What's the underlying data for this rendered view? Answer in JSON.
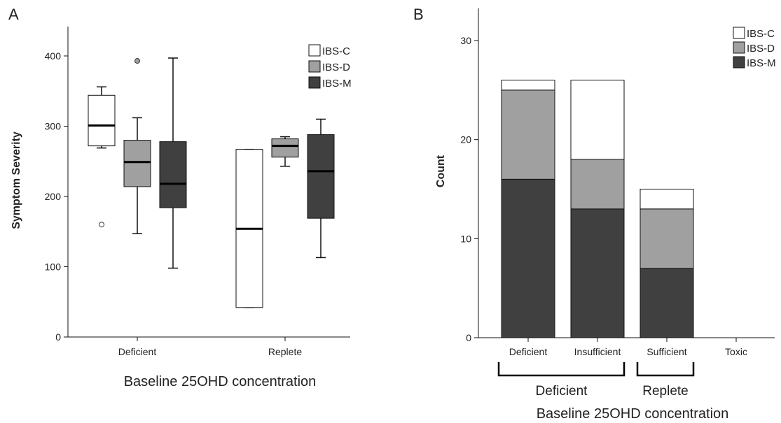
{
  "chart_data": [
    {
      "panel_label": "A",
      "type": "box",
      "ylabel": "Symptom Severity",
      "xlabel": "Baseline 25OHD concentration",
      "ylim": [
        0,
        440
      ],
      "yticks": [
        0,
        100,
        200,
        300,
        400
      ],
      "categories": [
        "Deficient",
        "Replete"
      ],
      "legend": {
        "position": "top-right",
        "entries": [
          "IBS-C",
          "IBS-D",
          "IBS-M"
        ]
      },
      "series": [
        {
          "name": "IBS-C",
          "color": "#ffffff",
          "boxes": [
            {
              "category": "Deficient",
              "min": 269,
              "q1": 272,
              "median": 301,
              "q3": 344,
              "max": 356,
              "outliers": [
                160
              ]
            },
            {
              "category": "Replete",
              "min": 42,
              "q1": 42,
              "median": 154,
              "q3": 267,
              "max": 267,
              "outliers": []
            }
          ]
        },
        {
          "name": "IBS-D",
          "color": "#a0a0a0",
          "boxes": [
            {
              "category": "Deficient",
              "min": 147,
              "q1": 214,
              "median": 249,
              "q3": 280,
              "max": 312,
              "outliers": [
                393
              ]
            },
            {
              "category": "Replete",
              "min": 243,
              "q1": 256,
              "median": 272,
              "q3": 282,
              "max": 285,
              "outliers": []
            }
          ]
        },
        {
          "name": "IBS-M",
          "color": "#404040",
          "boxes": [
            {
              "category": "Deficient",
              "min": 98,
              "q1": 184,
              "median": 218,
              "q3": 278,
              "max": 397,
              "outliers": []
            },
            {
              "category": "Replete",
              "min": 113,
              "q1": 169,
              "median": 236,
              "q3": 288,
              "max": 310,
              "outliers": []
            }
          ]
        }
      ]
    },
    {
      "panel_label": "B",
      "type": "bar",
      "stacked": true,
      "ylabel": "Count",
      "xlabel": "Baseline 25OHD concentration",
      "ylim": [
        0,
        33
      ],
      "yticks": [
        0,
        10,
        20,
        30
      ],
      "categories": [
        "Deficient",
        "Insufficient",
        "Sufficient",
        "Toxic"
      ],
      "groups": [
        {
          "label": "Deficient",
          "categories": [
            "Deficient",
            "Insufficient"
          ]
        },
        {
          "label": "Replete",
          "categories": [
            "Sufficient"
          ]
        }
      ],
      "legend": {
        "position": "top-right",
        "entries": [
          "IBS-C",
          "IBS-D",
          "IBS-M"
        ]
      },
      "series": [
        {
          "name": "IBS-M",
          "color": "#404040",
          "values": [
            16,
            13,
            7,
            0
          ]
        },
        {
          "name": "IBS-D",
          "color": "#a0a0a0",
          "values": [
            9,
            5,
            6,
            0
          ]
        },
        {
          "name": "IBS-C",
          "color": "#ffffff",
          "values": [
            1,
            8,
            2,
            0
          ]
        }
      ]
    }
  ]
}
